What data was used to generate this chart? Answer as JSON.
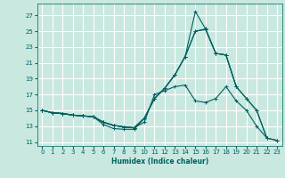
{
  "title": "",
  "xlabel": "Humidex (Indice chaleur)",
  "ylabel": "",
  "background_color": "#c8e8e0",
  "grid_color": "#ffffff",
  "line_color": "#006060",
  "xlim": [
    -0.5,
    23.5
  ],
  "ylim": [
    10.5,
    28.5
  ],
  "xticks": [
    0,
    1,
    2,
    3,
    4,
    5,
    6,
    7,
    8,
    9,
    10,
    11,
    12,
    13,
    14,
    15,
    16,
    17,
    18,
    19,
    20,
    21,
    22,
    23
  ],
  "yticks": [
    11,
    13,
    15,
    17,
    19,
    21,
    23,
    25,
    27
  ],
  "lines": [
    [
      15.0,
      14.7,
      14.6,
      14.4,
      14.3,
      14.2,
      13.2,
      12.7,
      12.6,
      12.6,
      14.0,
      null,
      null,
      null,
      null,
      null,
      null,
      null,
      null,
      null,
      null,
      null,
      null,
      null
    ],
    [
      15.0,
      14.7,
      14.6,
      14.4,
      14.3,
      14.2,
      13.5,
      13.1,
      12.9,
      12.8,
      13.5,
      17.0,
      17.5,
      18.0,
      18.2,
      16.2,
      16.0,
      16.5,
      18.0,
      16.2,
      15.0,
      13.0,
      11.5,
      null
    ],
    [
      15.0,
      14.7,
      14.6,
      14.4,
      14.3,
      14.2,
      13.5,
      13.1,
      12.9,
      12.8,
      14.0,
      16.5,
      17.8,
      19.5,
      21.8,
      25.0,
      25.2,
      22.2,
      22.0,
      18.0,
      null,
      null,
      null,
      null
    ],
    [
      15.0,
      14.7,
      14.6,
      14.4,
      14.3,
      14.2,
      13.5,
      13.1,
      12.9,
      12.8,
      14.0,
      16.5,
      17.8,
      19.5,
      21.8,
      25.0,
      25.3,
      22.2,
      22.0,
      18.0,
      16.5,
      15.0,
      11.5,
      11.2
    ],
    [
      15.0,
      14.7,
      14.6,
      14.4,
      14.3,
      14.2,
      13.5,
      13.1,
      12.9,
      12.8,
      14.0,
      16.5,
      17.8,
      19.5,
      21.8,
      27.5,
      25.3,
      22.2,
      22.0,
      18.0,
      16.5,
      15.0,
      11.5,
      11.2
    ]
  ]
}
